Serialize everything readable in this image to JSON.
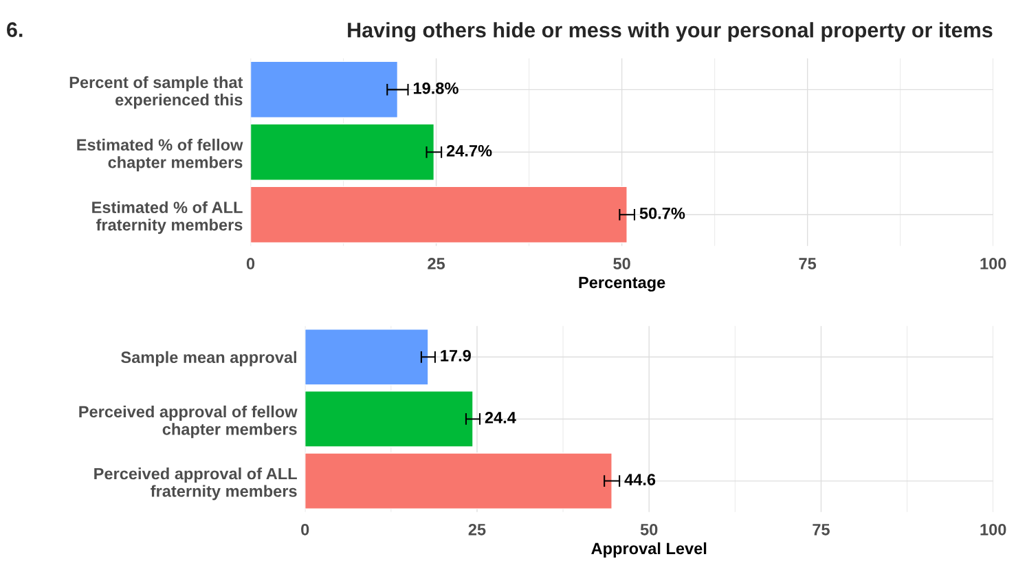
{
  "chart_data": [
    {
      "type": "bar",
      "orientation": "horizontal",
      "title": "Having others hide or mess with your personal property or items",
      "annotations": [
        "6."
      ],
      "categories": [
        "Percent of sample that\nexperienced this",
        "Estimated % of fellow\nchapter members",
        "Estimated % of ALL\nfraternity members"
      ],
      "values": [
        19.8,
        24.7,
        50.7
      ],
      "colors": [
        "#619cff",
        "#00ba38",
        "#f8766d"
      ],
      "errors": [
        1.4,
        1.0,
        1.0
      ],
      "value_labels": [
        "19.8%",
        "24.7%",
        "50.7%"
      ],
      "xlim": [
        0,
        100
      ],
      "xticks": [
        0,
        25,
        50,
        75,
        100
      ],
      "xlabel": "Percentage",
      "grid": true
    },
    {
      "type": "bar",
      "orientation": "horizontal",
      "categories": [
        "Sample mean approval",
        "Perceived approval of fellow\nchapter members",
        "Perceived approval of ALL\nfraternity members"
      ],
      "values": [
        17.9,
        24.4,
        44.6
      ],
      "colors": [
        "#619cff",
        "#00ba38",
        "#f8766d"
      ],
      "errors": [
        1.0,
        1.0,
        1.1
      ],
      "data_labels": true,
      "xlim": [
        0,
        100
      ],
      "xticks": [
        0,
        25,
        50,
        75,
        100
      ],
      "xlabel": "Approval Level",
      "grid": true
    }
  ]
}
